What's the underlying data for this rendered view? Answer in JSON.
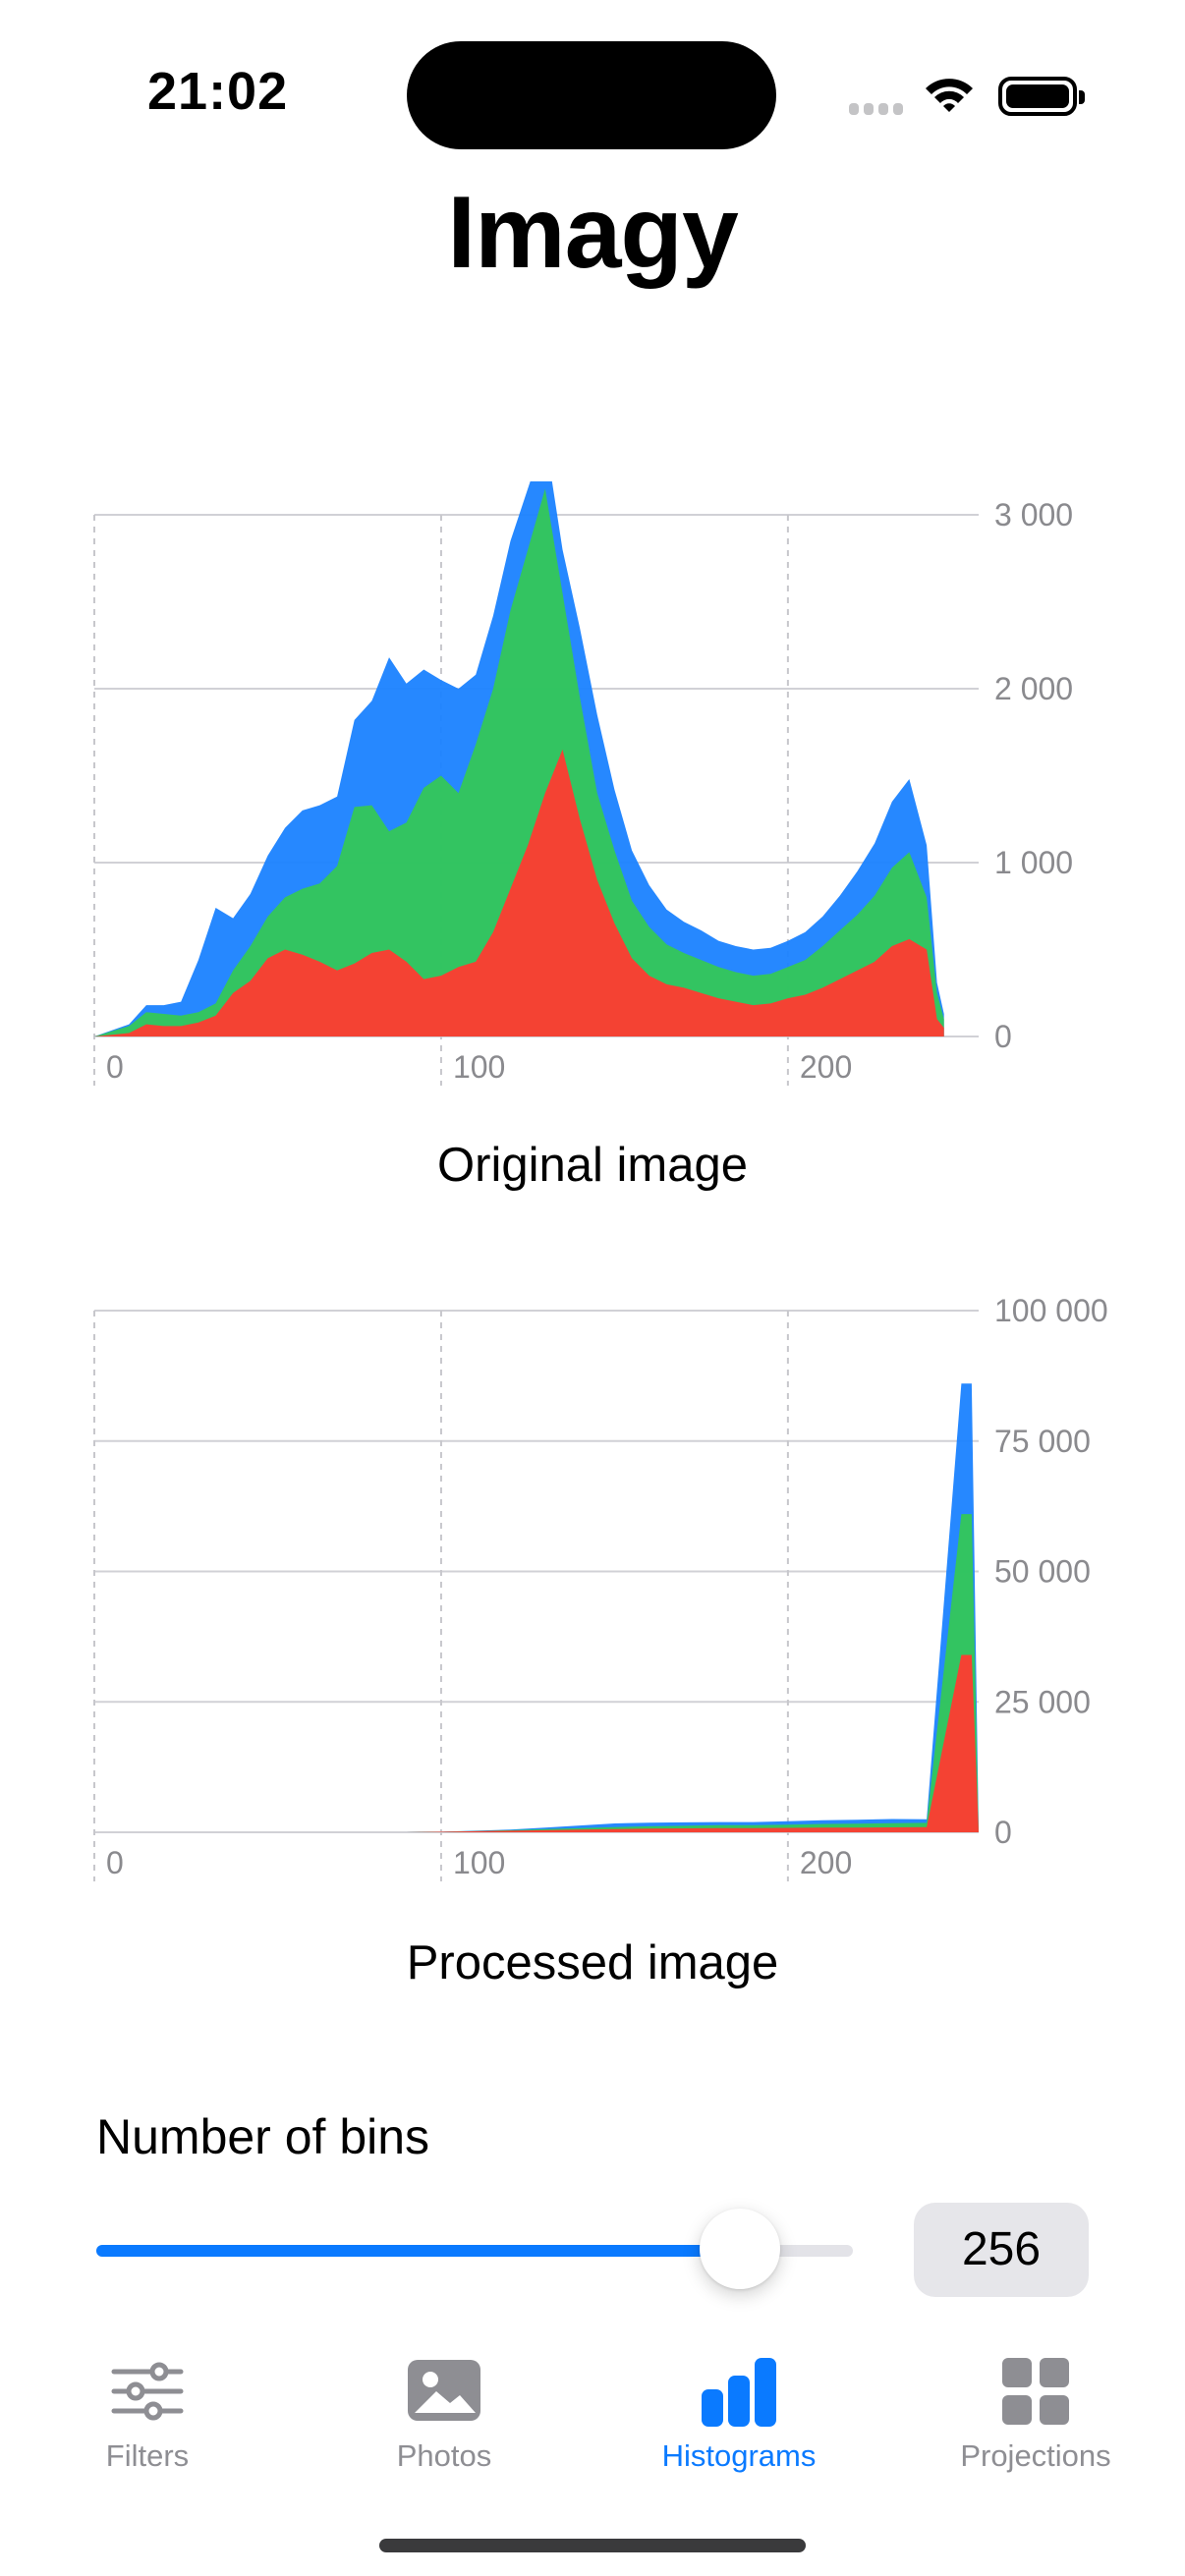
{
  "status_bar": {
    "time": "21:02"
  },
  "app": {
    "title": "Imagy"
  },
  "colors": {
    "accent": "#0a7aff",
    "red": "#ff3b30",
    "green": "#34c759",
    "blue": "#1a82ff",
    "inactive": "#8e8e93"
  },
  "charts": {
    "original": {
      "caption": "Original image"
    },
    "processed": {
      "caption": "Processed image"
    }
  },
  "chart_data": [
    {
      "type": "area",
      "title": "Original image",
      "stacked": true,
      "xlim": [
        0,
        255
      ],
      "ylim": [
        0,
        3000
      ],
      "x_ticks": [
        0,
        100,
        200
      ],
      "x_tick_labels": [
        "0",
        "100",
        "200"
      ],
      "y_ticks": [
        0,
        1000,
        2000,
        3000
      ],
      "y_tick_labels": [
        "0",
        "1 000",
        "2 000",
        "3 000"
      ],
      "y_axis_position": "right",
      "grid": true,
      "x": [
        0,
        10,
        15,
        20,
        25,
        30,
        35,
        40,
        45,
        50,
        55,
        60,
        65,
        70,
        75,
        80,
        85,
        90,
        95,
        100,
        105,
        110,
        115,
        120,
        125,
        130,
        135,
        140,
        145,
        150,
        155,
        160,
        165,
        170,
        175,
        180,
        185,
        190,
        195,
        200,
        205,
        210,
        215,
        220,
        225,
        230,
        235,
        240,
        243,
        245
      ],
      "series": [
        {
          "values": [
            0,
            20,
            70,
            60,
            60,
            80,
            120,
            250,
            320,
            450,
            500,
            470,
            430,
            380,
            420,
            480,
            500,
            430,
            330,
            350,
            400,
            430,
            600,
            850,
            1100,
            1400,
            1650,
            1250,
            900,
            650,
            450,
            350,
            300,
            280,
            250,
            220,
            200,
            180,
            190,
            220,
            240,
            280,
            330,
            380,
            430,
            520,
            560,
            500,
            100,
            50
          ]
        },
        {
          "values": [
            0,
            40,
            70,
            70,
            60,
            60,
            70,
            130,
            200,
            240,
            300,
            380,
            450,
            600,
            900,
            850,
            680,
            800,
            1100,
            1150,
            1000,
            1250,
            1400,
            1600,
            1700,
            1750,
            900,
            700,
            500,
            420,
            330,
            280,
            230,
            200,
            190,
            180,
            170,
            170,
            170,
            180,
            200,
            240,
            280,
            320,
            380,
            450,
            500,
            300,
            150,
            50
          ]
        },
        {
          "values": [
            0,
            10,
            40,
            50,
            80,
            300,
            550,
            300,
            300,
            350,
            400,
            450,
            450,
            400,
            500,
            600,
            1000,
            800,
            680,
            550,
            600,
            400,
            420,
            400,
            350,
            300,
            250,
            400,
            450,
            350,
            290,
            240,
            200,
            180,
            170,
            150,
            150,
            150,
            150,
            150,
            160,
            170,
            200,
            250,
            300,
            380,
            420,
            300,
            60,
            30
          ]
        }
      ]
    },
    {
      "type": "area",
      "title": "Processed image",
      "stacked": true,
      "xlim": [
        0,
        255
      ],
      "ylim": [
        0,
        100000
      ],
      "x_ticks": [
        0,
        100,
        200
      ],
      "x_tick_labels": [
        "0",
        "100",
        "200"
      ],
      "y_ticks": [
        0,
        25000,
        50000,
        75000,
        100000
      ],
      "y_tick_labels": [
        "0",
        "25 000",
        "50 000",
        "75 000",
        "100 000"
      ],
      "y_axis_position": "right",
      "grid": true,
      "x": [
        90,
        100,
        110,
        120,
        130,
        140,
        150,
        160,
        170,
        180,
        190,
        200,
        210,
        220,
        230,
        240,
        250,
        253,
        255
      ],
      "series": [
        {
          "values": [
            0,
            100,
            200,
            300,
            400,
            500,
            600,
            700,
            750,
            800,
            800,
            850,
            900,
            900,
            950,
            1000,
            34000,
            34000,
            0
          ]
        },
        {
          "values": [
            0,
            0,
            50,
            100,
            200,
            300,
            400,
            450,
            500,
            550,
            550,
            600,
            700,
            750,
            800,
            800,
            27000,
            27000,
            0
          ]
        },
        {
          "values": [
            0,
            0,
            50,
            100,
            300,
            500,
            700,
            700,
            650,
            600,
            600,
            650,
            700,
            750,
            800,
            700,
            25000,
            25000,
            0
          ]
        }
      ]
    }
  ],
  "bins": {
    "label": "Number of bins",
    "value": "256",
    "level": 0.85
  },
  "tabs": [
    {
      "label": "Filters",
      "icon": "sliders-icon"
    },
    {
      "label": "Photos",
      "icon": "photo-icon"
    },
    {
      "label": "Histograms",
      "icon": "bar-chart-icon",
      "active": true
    },
    {
      "label": "Projections",
      "icon": "grid-icon"
    }
  ]
}
